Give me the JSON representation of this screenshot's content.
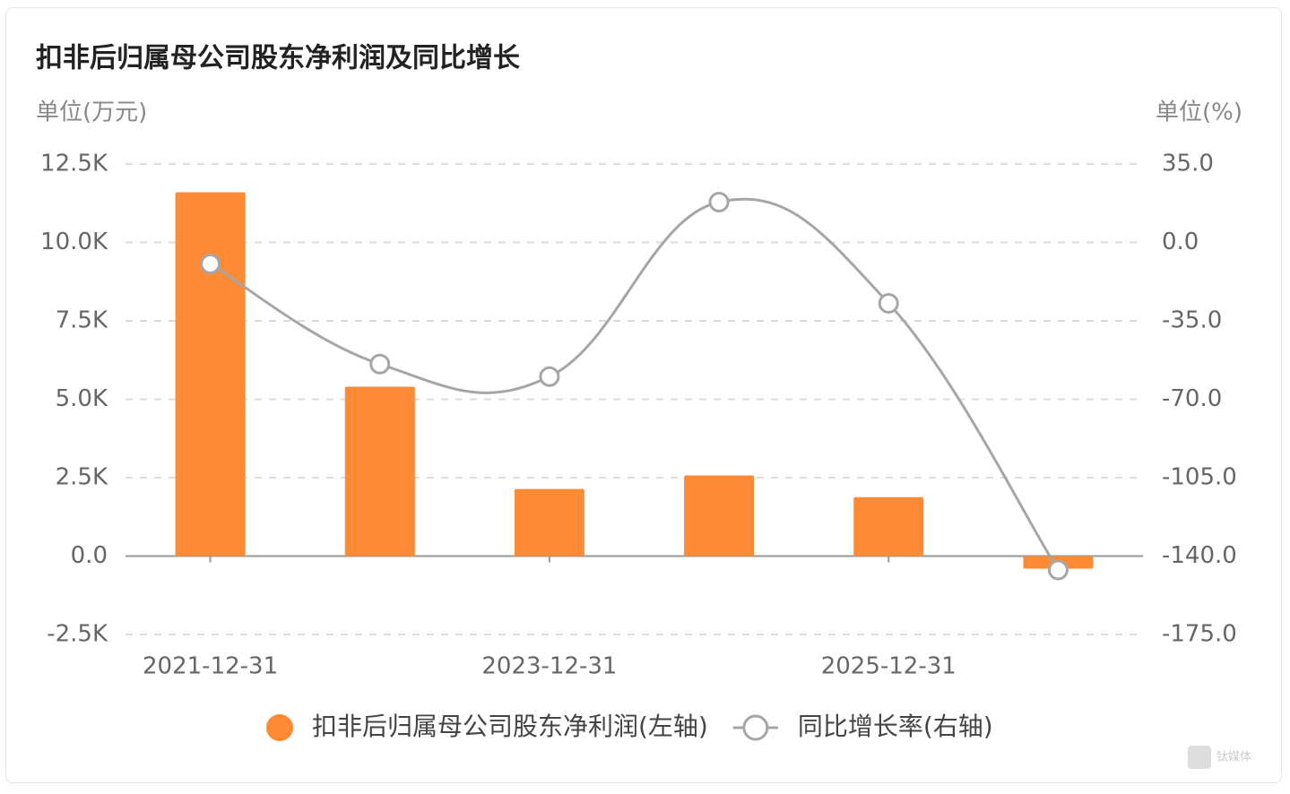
{
  "chart_data": {
    "type": "bar-line",
    "title": "扣非后归属母公司股东净利润及同比增长",
    "y_unit": "单位(万元)",
    "y2_unit": "单位(%)",
    "categories": [
      "2021-12-31",
      null,
      "2023-12-31",
      null,
      "2025-12-31",
      null
    ],
    "series": [
      {
        "name": "扣非后归属母公司股东净利润(左轴)",
        "type": "bar",
        "color": "#ff8a35",
        "values": [
          11600,
          5400,
          2140,
          2570,
          1880,
          -400
        ]
      },
      {
        "name": "同比增长率(右轴)",
        "type": "line",
        "axis": "y2",
        "color": "#a6a6a6",
        "values": [
          -9.6,
          -54.3,
          -59.9,
          18,
          -27.2,
          -146.2
        ]
      }
    ],
    "ylim": [
      -2500,
      12500
    ],
    "yticks": [
      {
        "value": -2500,
        "label": "-2.5K"
      },
      {
        "value": 0,
        "label": "0.0"
      },
      {
        "value": 2500,
        "label": "2.5K"
      },
      {
        "value": 5000,
        "label": "5.0K"
      },
      {
        "value": 7500,
        "label": "7.5K"
      },
      {
        "value": 10000,
        "label": "10.0K"
      },
      {
        "value": 12500,
        "label": "12.5K"
      }
    ],
    "y2lim": [
      -175,
      35
    ],
    "y2ticks": [
      {
        "value": -175,
        "label": "-175.0"
      },
      {
        "value": -140,
        "label": "-140.0"
      },
      {
        "value": -105,
        "label": "-105.0"
      },
      {
        "value": -70,
        "label": "-70.0"
      },
      {
        "value": -35,
        "label": "-35.0"
      },
      {
        "value": 0,
        "label": "0.0"
      },
      {
        "value": 35,
        "label": "35.0"
      }
    ],
    "grid": true,
    "legend": "bottom",
    "watermark": "钛媒体"
  }
}
